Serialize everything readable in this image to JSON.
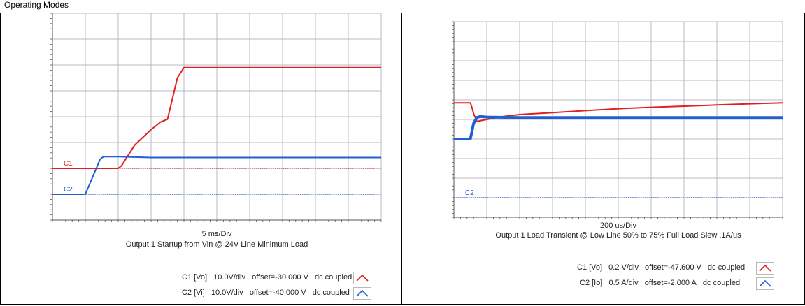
{
  "caption": "Operating Modes",
  "chart_data": [
    {
      "type": "line",
      "title": "Output 1 Startup from Vin @ 24V Line Minimum Load",
      "xlabel": "5 ms/Div",
      "grid": true,
      "divisions": {
        "x": 10,
        "y": 8
      },
      "xlim": [
        0,
        10
      ],
      "ylim": [
        0,
        8
      ],
      "channel_markers": [
        {
          "label": "C1",
          "color": "#e02020",
          "level": 2.0
        },
        {
          "label": "C2",
          "color": "#2060d0",
          "level": 1.0
        }
      ],
      "series": [
        {
          "name": "C1",
          "color": "#e02020",
          "x": [
            0,
            1.0,
            2.0,
            2.1,
            2.5,
            3.0,
            3.3,
            3.5,
            3.8,
            4.0,
            5.0,
            7.0,
            10.0
          ],
          "y": [
            2.0,
            2.0,
            2.0,
            2.1,
            2.9,
            3.5,
            3.8,
            3.9,
            5.5,
            5.9,
            5.9,
            5.9,
            5.9
          ]
        },
        {
          "name": "C2",
          "color": "#2060d0",
          "x": [
            0,
            1.0,
            1.45,
            1.55,
            2.0,
            3.0,
            5.0,
            10.0
          ],
          "y": [
            1.0,
            1.0,
            2.35,
            2.45,
            2.45,
            2.42,
            2.42,
            2.42
          ]
        }
      ],
      "legend": [
        {
          "ch": "C1 [Vo]",
          "scale": "10.0V/div",
          "offset": "offset=-30.000 V",
          "coupling": "dc coupled",
          "color": "#e02020"
        },
        {
          "ch": "C2 [Vi]",
          "scale": "10.0V/div",
          "offset": "offset=-40.000 V",
          "coupling": "dc coupled",
          "color": "#2060d0"
        }
      ],
      "legend_placement": "bottom-right"
    },
    {
      "type": "line",
      "title": "Output 1 Load Transient @ Low Line 50% to 75% Full Load Slew .1A/us",
      "xlabel": "200 us/Div",
      "grid": true,
      "divisions": {
        "x": 10,
        "y": 10
      },
      "xlim": [
        0,
        10
      ],
      "ylim": [
        0,
        10
      ],
      "channel_markers": [
        {
          "label": "C2",
          "color": "#2060d0",
          "level": 1.0
        }
      ],
      "series": [
        {
          "name": "C1",
          "color": "#e02020",
          "x": [
            0,
            0.5,
            0.55,
            0.6,
            0.7,
            1.0,
            1.5,
            2.0,
            3.0,
            4.0,
            5.0,
            6.0,
            7.0,
            8.0,
            9.0,
            10.0
          ],
          "y": [
            5.85,
            5.85,
            5.6,
            5.3,
            4.9,
            5.0,
            5.15,
            5.25,
            5.35,
            5.45,
            5.55,
            5.62,
            5.68,
            5.74,
            5.8,
            5.85
          ]
        },
        {
          "name": "C2",
          "color": "#2060d0",
          "x": [
            0,
            0.5,
            0.55,
            0.6,
            0.7,
            0.8,
            1.0,
            2.0,
            4.0,
            6.0,
            8.0,
            10.0
          ],
          "y": [
            4.0,
            4.0,
            4.4,
            4.8,
            5.1,
            5.15,
            5.12,
            5.1,
            5.1,
            5.1,
            5.1,
            5.1
          ]
        }
      ],
      "legend": [
        {
          "ch": "C1 [Vo]",
          "scale": "0.2 V/div",
          "offset": "offset=-47.600 V",
          "coupling": "dc coupled",
          "color": "#e02020"
        },
        {
          "ch": "C2 [Io]",
          "scale": "0.5 A/div",
          "offset": "offset=-2.000 A",
          "coupling": "dc coupled",
          "color": "#2060d0"
        }
      ],
      "legend_placement": "bottom-right"
    }
  ]
}
